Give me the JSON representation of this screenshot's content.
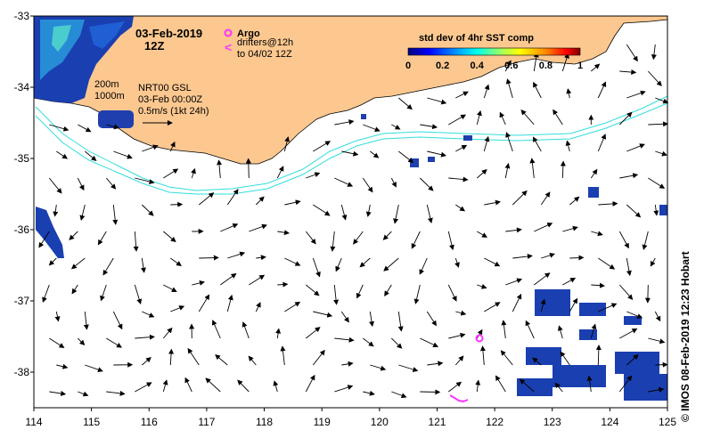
{
  "title": {
    "date": "03-Feb-2019",
    "time": "12Z"
  },
  "legend": {
    "argo_label": "Argo",
    "drifters_line1": "drifters@12h",
    "drifters_line2": "to 04/02 12Z",
    "argo_color": "#ff33ff",
    "drifter_color": "#ff33ff"
  },
  "contours": {
    "shallow_label": "200m",
    "deep_label": "1000m",
    "color": "#33dddd"
  },
  "current_ref": {
    "line1": "NRT00 GSL",
    "line2": "03-Feb 00:00Z",
    "line3": "0.5m/s (1kt 24h)"
  },
  "colorbar": {
    "title": "std dev of 4hr SST comp",
    "ticks": [
      "0",
      "0.2",
      "0.4",
      "0.6",
      "0.8",
      "1"
    ],
    "range": [
      0,
      1
    ],
    "colors": [
      "#00007f",
      "#0000ff",
      "#007fff",
      "#00ffff",
      "#7fff7f",
      "#ffff00",
      "#ff7f00",
      "#ff0000",
      "#7f0000"
    ]
  },
  "axes": {
    "x_ticks": [
      "114",
      "115",
      "116",
      "117",
      "118",
      "119",
      "120",
      "121",
      "122",
      "123",
      "124",
      "125"
    ],
    "y_ticks": [
      "-33",
      "-34",
      "-35",
      "-36",
      "-37",
      "-38"
    ],
    "lon_range": [
      114,
      125
    ],
    "lat_range": [
      -38.5,
      -33
    ]
  },
  "land_color": "#fcc890",
  "credit": "IMOS 08-Feb-2019 12:23 Hobart",
  "copyright_symbol": "©"
}
